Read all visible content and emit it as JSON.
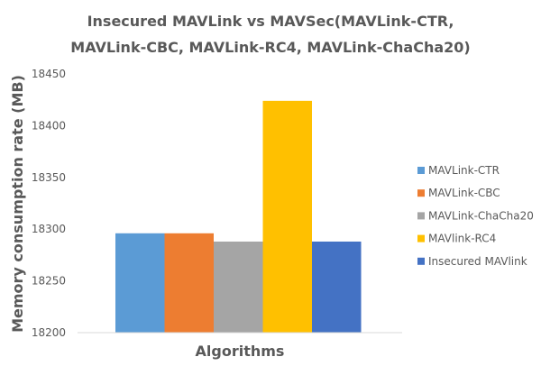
{
  "chart_data": {
    "type": "bar",
    "title_lines": [
      "Insecured MAVLink vs MAVSec(MAVLink-CTR,",
      "MAVLink-CBC, MAVLink-RC4, MAVLink-ChaCha20)"
    ],
    "xlabel": "Algorithms",
    "ylabel": "Memory consumption rate (MB)",
    "ylim": [
      18200,
      18450
    ],
    "yticks": [
      18200,
      18250,
      18300,
      18350,
      18400,
      18450
    ],
    "grid": false,
    "legend_position": "right",
    "series": [
      {
        "name": "MAVLink-CTR",
        "value": 18296,
        "color": "#5B9BD5"
      },
      {
        "name": "MAVLink-CBC",
        "value": 18296,
        "color": "#ED7D31"
      },
      {
        "name": "MAVLink-ChaCha20",
        "value": 18288,
        "color": "#A5A5A5"
      },
      {
        "name": "MAVlink-RC4",
        "value": 18424,
        "color": "#FFC000"
      },
      {
        "name": "Insecured MAVlink",
        "value": 18288,
        "color": "#4472C4"
      }
    ]
  }
}
